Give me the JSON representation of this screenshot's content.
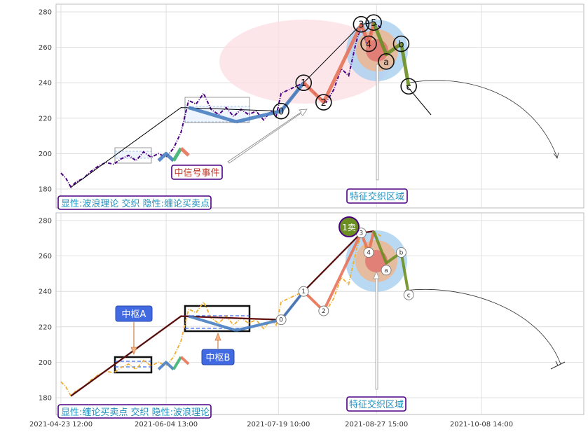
{
  "colors": {
    "price": "#4b0082",
    "price_bottom": "#f0ad2e",
    "trend_line": "#000000",
    "wave_red": "#e8735a",
    "wave_green": "#6b8e23",
    "wave_blue": "#4a7fc1",
    "wave_teal": "#3cb371",
    "ellipse_pink": "#fbdde2",
    "zone_blue": "#a8cff0",
    "zone_orange": "#f4b183",
    "zone_red": "#e06666",
    "label_border": "#4b0082",
    "label_text_blue": "#1f8fbf",
    "label_text_red": "#c0392b",
    "zhongshu_fill": "#4169e1",
    "sell_marker": "#6b8e23"
  },
  "chart_data": [
    {
      "type": "line",
      "panel": "top",
      "ylim": [
        170,
        285
      ],
      "yticks": [
        180,
        200,
        220,
        240,
        260,
        280
      ],
      "grid": true,
      "elliott_points": [
        {
          "label": "0",
          "x": "2021-07-20",
          "y": 224
        },
        {
          "label": "1",
          "x": "2021-07-29",
          "y": 240
        },
        {
          "label": "2",
          "x": "2021-08-06",
          "y": 229
        },
        {
          "label": "3",
          "x": "2021-08-21",
          "y": 273
        },
        {
          "label": "4",
          "x": "2021-08-24",
          "y": 262
        },
        {
          "label": "5",
          "x": "2021-08-26",
          "y": 274
        },
        {
          "label": "a",
          "x": "2021-08-31",
          "y": 252
        },
        {
          "label": "b",
          "x": "2021-09-06",
          "y": 262
        },
        {
          "label": "c",
          "x": "2021-09-09",
          "y": 238
        }
      ],
      "annotations": {
        "event": "中信号事件",
        "zone": "特征交织区域",
        "legend": "显性:波浪理论 交织 隐性:缠论买卖点"
      }
    },
    {
      "type": "line",
      "panel": "bottom",
      "ylim": [
        170,
        285
      ],
      "yticks": [
        180,
        200,
        220,
        240,
        260,
        280
      ],
      "grid": true,
      "xticks": [
        "2021-04-23 12:00",
        "2021-06-04 13:00",
        "2021-07-19 10:00",
        "2021-08-27 15:00",
        "2021-10-08 14:00"
      ],
      "elliott_points": [
        {
          "label": "0",
          "x": "2021-07-20",
          "y": 224
        },
        {
          "label": "1",
          "x": "2021-07-29",
          "y": 240
        },
        {
          "label": "2",
          "x": "2021-08-06",
          "y": 229
        },
        {
          "label": "3",
          "x": "2021-08-21",
          "y": 273
        },
        {
          "label": "4",
          "x": "2021-08-24",
          "y": 262
        },
        {
          "label": "a",
          "x": "2021-08-31",
          "y": 252
        },
        {
          "label": "b",
          "x": "2021-09-06",
          "y": 262
        },
        {
          "label": "c",
          "x": "2021-09-09",
          "y": 238
        }
      ],
      "sell_point": {
        "label": "1卖",
        "x": "2021-08-26",
        "y": 274
      },
      "zhongshu": [
        {
          "label": "中枢A",
          "y_low": 197,
          "y_high": 203
        },
        {
          "label": "中枢B",
          "y_low": 218,
          "y_high": 232
        }
      ],
      "annotations": {
        "zone": "特征交织区域",
        "legend": "显性:缠论买卖点 交织 隐性:波浪理论"
      }
    }
  ]
}
